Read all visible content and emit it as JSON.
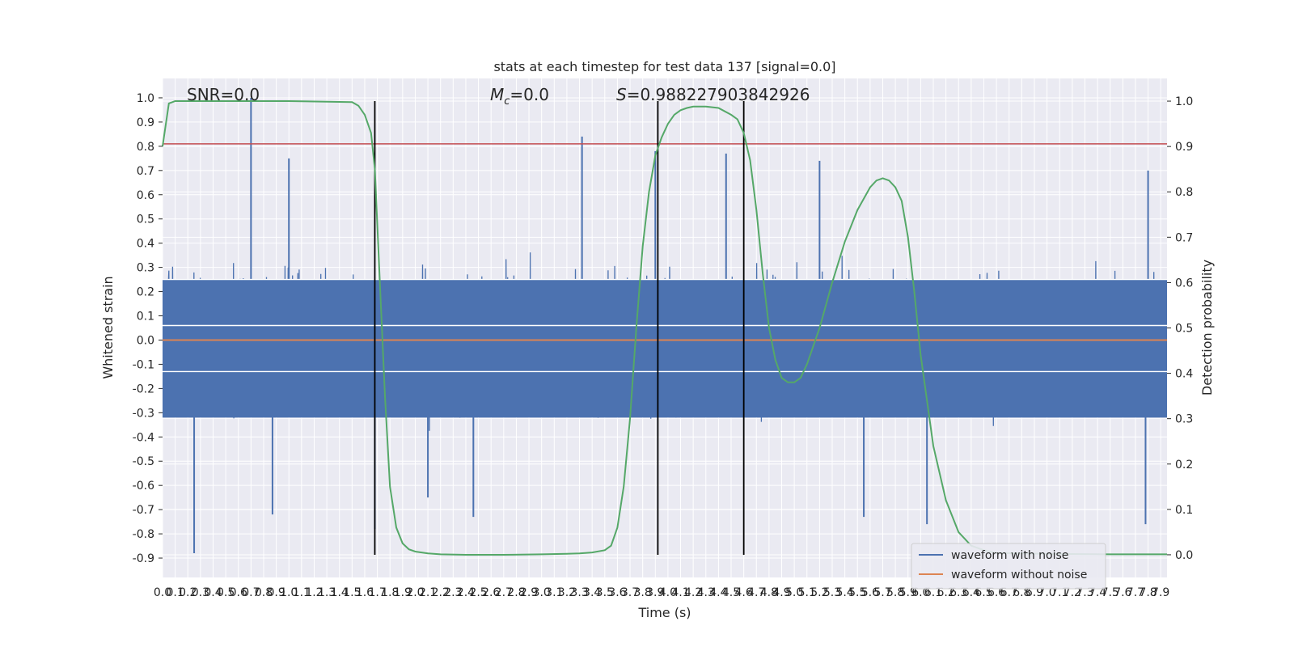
{
  "chart_data": {
    "type": "line",
    "title": "stats at each timestep for test data 137 [signal=0.0]",
    "xlabel": "Time (s)",
    "ylabel_left": "Whitened strain",
    "ylabel_right": "Detection probability",
    "xlim": [
      0.0,
      7.95
    ],
    "ylim_left": [
      -0.98,
      1.08
    ],
    "ylim_right": [
      -0.05,
      1.05
    ],
    "grid": true,
    "yticks_left": [
      -0.9,
      -0.8,
      -0.7,
      -0.6,
      -0.5,
      -0.4,
      -0.3,
      -0.2,
      -0.1,
      0.0,
      0.1,
      0.2,
      0.3,
      0.4,
      0.5,
      0.6,
      0.7,
      0.8,
      0.9,
      1.0
    ],
    "yticks_right": [
      0.0,
      0.1,
      0.2,
      0.3,
      0.4,
      0.5,
      0.6,
      0.7,
      0.8,
      0.9,
      1.0
    ],
    "xtick_step": 0.1,
    "xtick_count": 80,
    "annotations": {
      "snr": "SNR=0.0",
      "mc_symbol": "M",
      "mc_sub": "c",
      "mc_value": "=0.0",
      "s_symbol": "S",
      "s_value": "=0.988227903842926"
    },
    "threshold_left": 0.81,
    "vertical_lines_x": [
      1.68,
      3.92,
      4.6
    ],
    "horizontal_white_lines_left": [
      0.25,
      0.06,
      -0.13
    ],
    "series": [
      {
        "name": "waveform with noise",
        "color": "#4c72b0",
        "description": "noisy whitened strain, bulk amplitude ~0.3 with spikes",
        "spikes": [
          [
            0.7,
            1.0
          ],
          [
            0.25,
            -0.88
          ],
          [
            3.32,
            0.84
          ],
          [
            1.0,
            0.75
          ],
          [
            7.8,
            0.7
          ],
          [
            2.1,
            -0.65
          ],
          [
            5.2,
            0.74
          ],
          [
            3.9,
            0.78
          ],
          [
            1.68,
            -0.78
          ],
          [
            6.05,
            -0.76
          ],
          [
            7.78,
            -0.76
          ],
          [
            2.46,
            -0.73
          ],
          [
            0.87,
            -0.72
          ],
          [
            5.55,
            -0.73
          ],
          [
            4.46,
            0.77
          ]
        ]
      },
      {
        "name": "waveform without noise",
        "color": "#dd8452",
        "y": 0.0
      },
      {
        "name": "detection probability",
        "color": "#55a868",
        "axis": "right",
        "x": [
          0.0,
          0.05,
          0.1,
          0.2,
          0.5,
          1.0,
          1.5,
          1.55,
          1.6,
          1.65,
          1.68,
          1.72,
          1.76,
          1.8,
          1.85,
          1.9,
          1.95,
          2.0,
          2.1,
          2.2,
          2.4,
          2.7,
          3.0,
          3.2,
          3.3,
          3.4,
          3.5,
          3.55,
          3.6,
          3.65,
          3.7,
          3.75,
          3.8,
          3.85,
          3.9,
          3.95,
          4.0,
          4.05,
          4.1,
          4.15,
          4.2,
          4.3,
          4.4,
          4.5,
          4.55,
          4.6,
          4.65,
          4.7,
          4.75,
          4.8,
          4.85,
          4.9,
          4.95,
          5.0,
          5.05,
          5.1,
          5.2,
          5.3,
          5.4,
          5.5,
          5.6,
          5.65,
          5.7,
          5.75,
          5.8,
          5.85,
          5.9,
          5.95,
          6.0,
          6.1,
          6.2,
          6.3,
          6.4,
          6.5,
          6.6,
          7.0,
          7.5,
          7.95
        ],
        "y": [
          0.9,
          0.995,
          1.0,
          1.0,
          1.0,
          1.0,
          0.998,
          0.99,
          0.97,
          0.93,
          0.85,
          0.6,
          0.35,
          0.15,
          0.06,
          0.025,
          0.012,
          0.007,
          0.003,
          0.001,
          0.0,
          0.0,
          0.001,
          0.002,
          0.003,
          0.005,
          0.01,
          0.02,
          0.06,
          0.15,
          0.3,
          0.5,
          0.68,
          0.8,
          0.88,
          0.92,
          0.95,
          0.97,
          0.98,
          0.985,
          0.988,
          0.988,
          0.985,
          0.97,
          0.96,
          0.93,
          0.87,
          0.76,
          0.62,
          0.5,
          0.43,
          0.39,
          0.38,
          0.38,
          0.39,
          0.42,
          0.5,
          0.6,
          0.69,
          0.76,
          0.81,
          0.825,
          0.83,
          0.825,
          0.81,
          0.78,
          0.7,
          0.58,
          0.44,
          0.24,
          0.12,
          0.05,
          0.02,
          0.01,
          0.004,
          0.002,
          0.001,
          0.001
        ]
      }
    ],
    "legend": {
      "placement": "lower-right",
      "entries": [
        "waveform with noise",
        "waveform without noise"
      ]
    }
  },
  "colors": {
    "background": "#ffffff",
    "axes_face": "#eaeaf2",
    "grid": "#ffffff",
    "noise": "#4c72b0",
    "clean": "#dd8452",
    "prob": "#55a868",
    "threshold": "#c44e52",
    "vline": "#000000"
  }
}
